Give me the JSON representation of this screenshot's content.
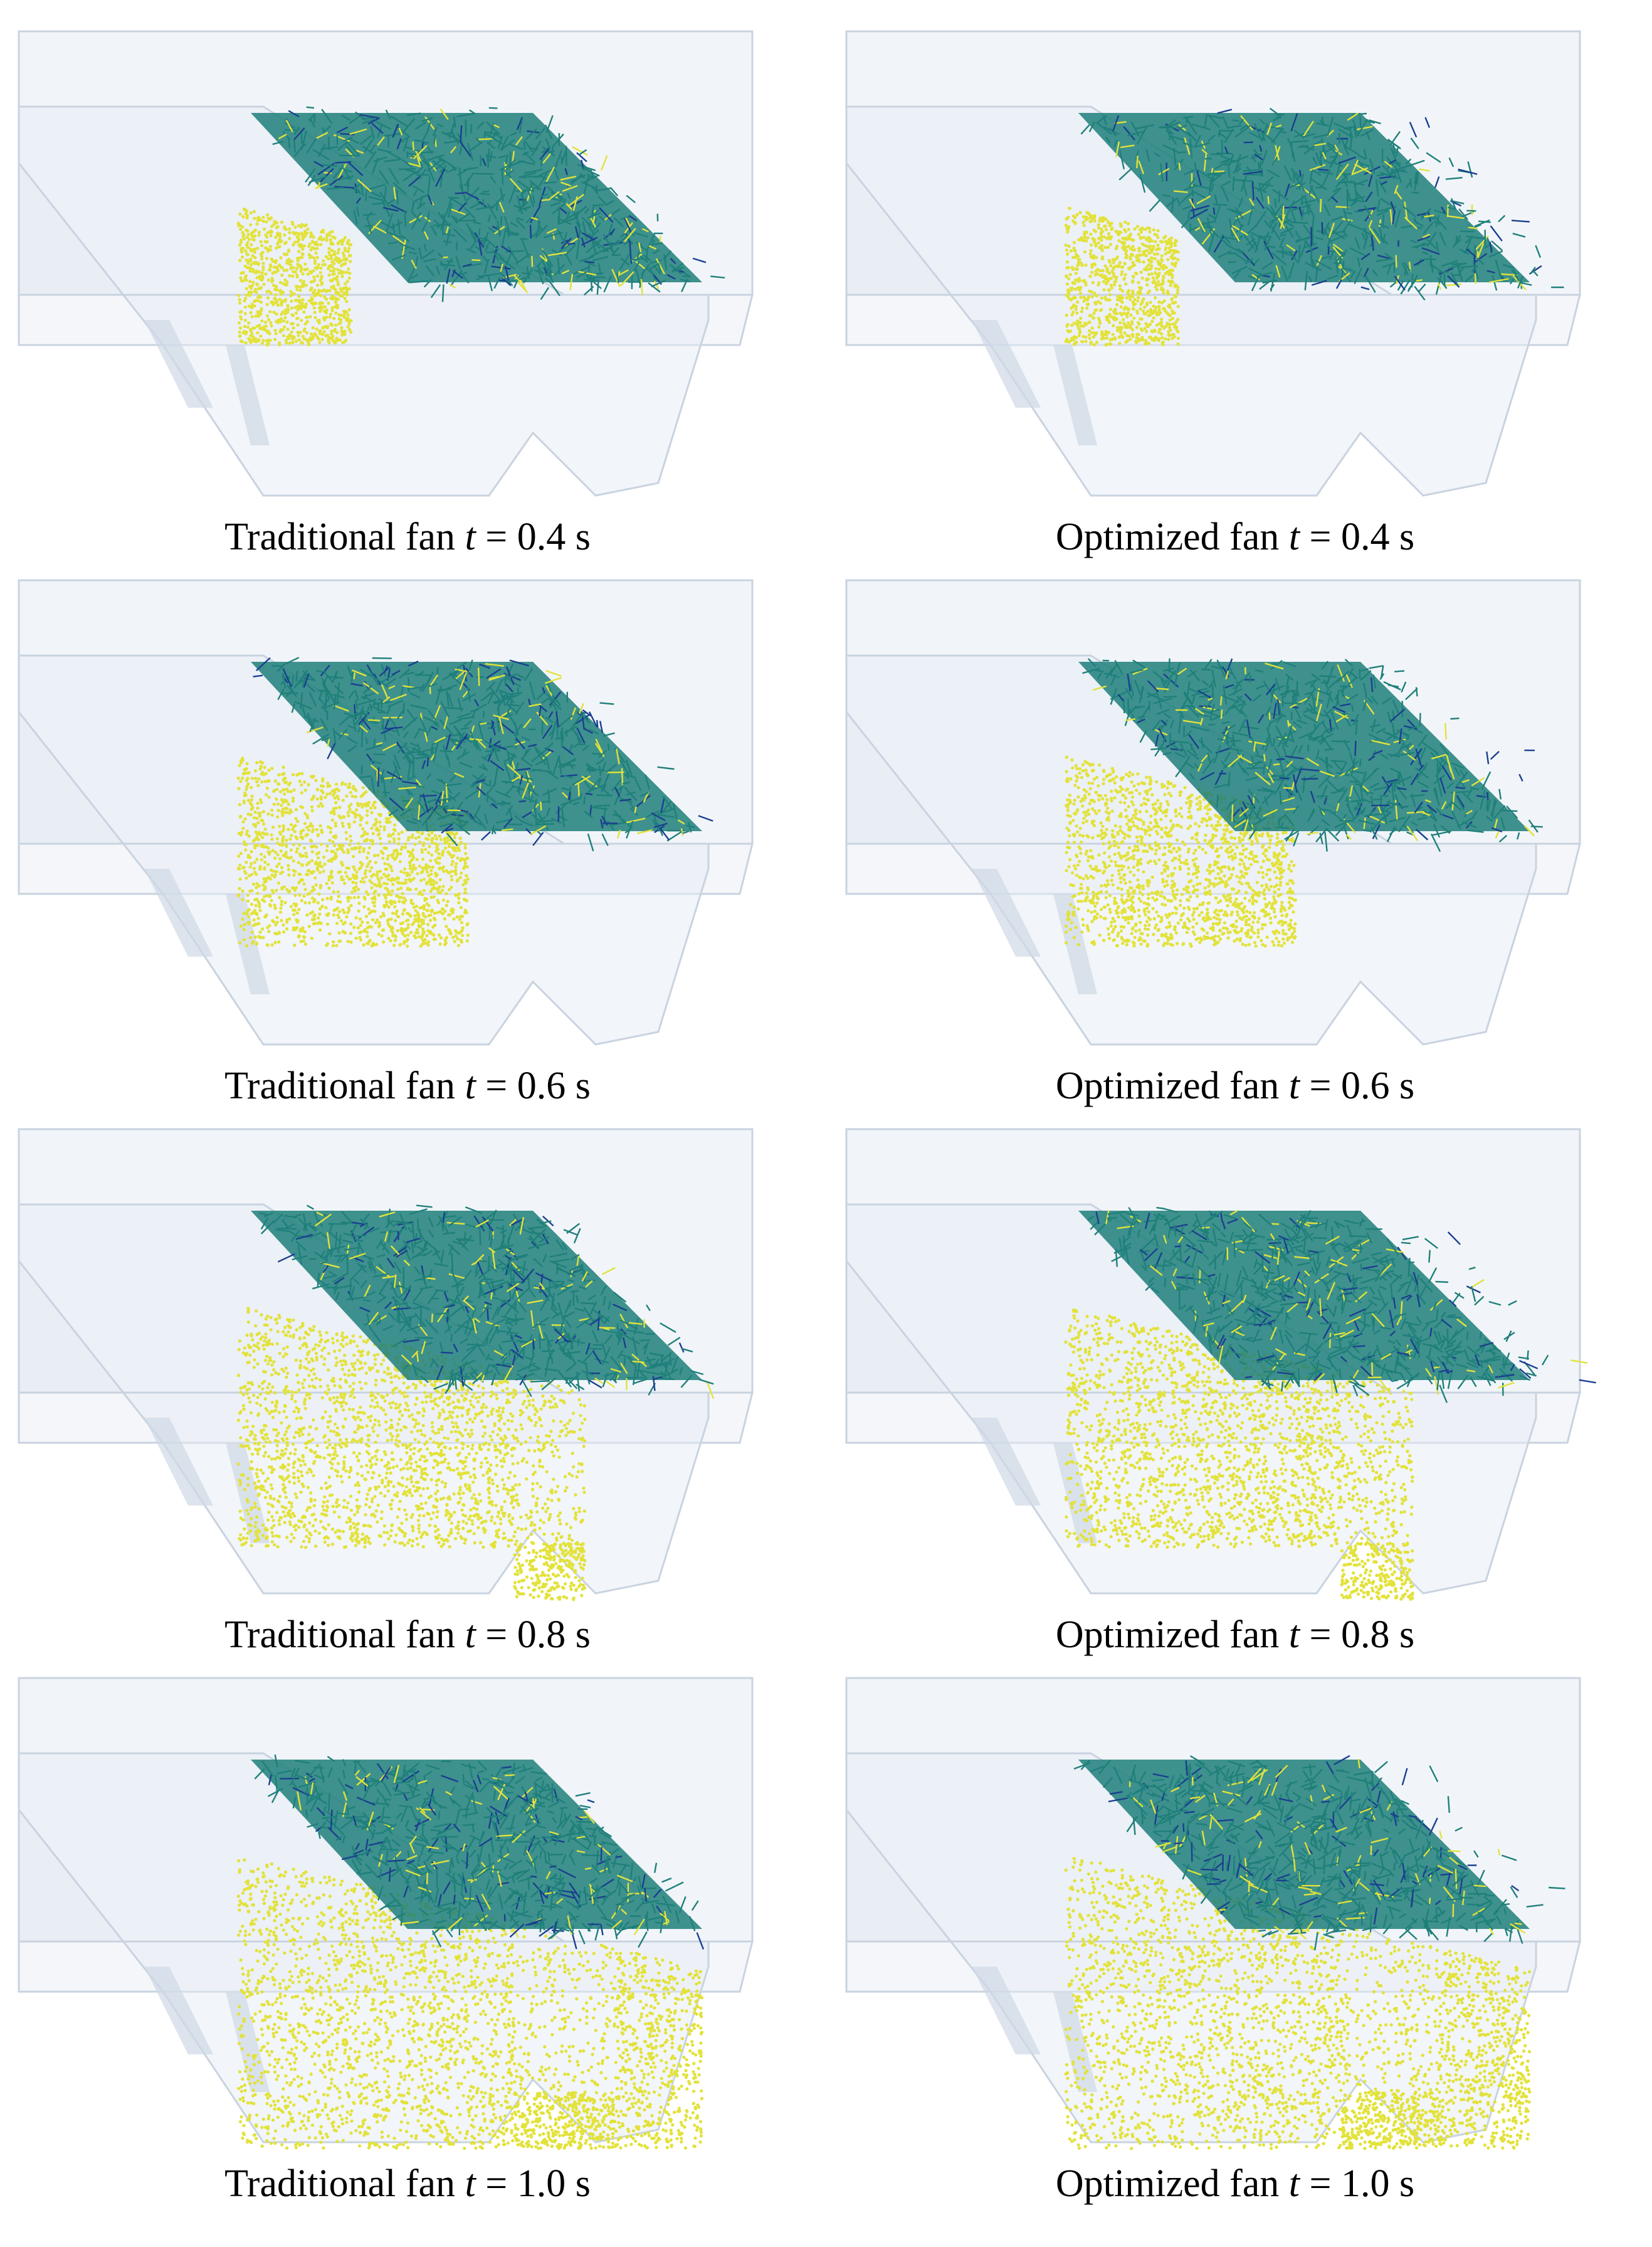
{
  "panels": [
    {
      "caption_prefix": "Traditional fan ",
      "caption_var": "t",
      "caption_suffix": " = 0.4 s",
      "fan": "traditional",
      "time_s": 0.4
    },
    {
      "caption_prefix": "Optimized fan ",
      "caption_var": "t",
      "caption_suffix": " = 0.4 s",
      "fan": "optimized",
      "time_s": 0.4
    },
    {
      "caption_prefix": "Traditional fan ",
      "caption_var": "t",
      "caption_suffix": " = 0.6 s",
      "fan": "traditional",
      "time_s": 0.6
    },
    {
      "caption_prefix": "Optimized fan ",
      "caption_var": "t",
      "caption_suffix": " = 0.6 s",
      "fan": "optimized",
      "time_s": 0.6
    },
    {
      "caption_prefix": "Traditional fan ",
      "caption_var": "t",
      "caption_suffix": " = 0.8 s",
      "fan": "traditional",
      "time_s": 0.8
    },
    {
      "caption_prefix": "Optimized fan ",
      "caption_var": "t",
      "caption_suffix": " = 0.8 s",
      "fan": "optimized",
      "time_s": 0.8
    },
    {
      "caption_prefix": "Traditional fan ",
      "caption_var": "t",
      "caption_suffix": " = 1.0 s",
      "fan": "traditional",
      "time_s": 1.0
    },
    {
      "caption_prefix": "Optimized fan ",
      "caption_var": "t",
      "caption_suffix": " = 1.0 s",
      "fan": "optimized",
      "time_s": 1.0
    }
  ],
  "colors": {
    "housing": "#e6ecf4",
    "housing_edge": "#c9d3e0",
    "straw": "#1f7f7a",
    "straw_dark": "#1b3f8f",
    "grain": "#e2e23a"
  }
}
